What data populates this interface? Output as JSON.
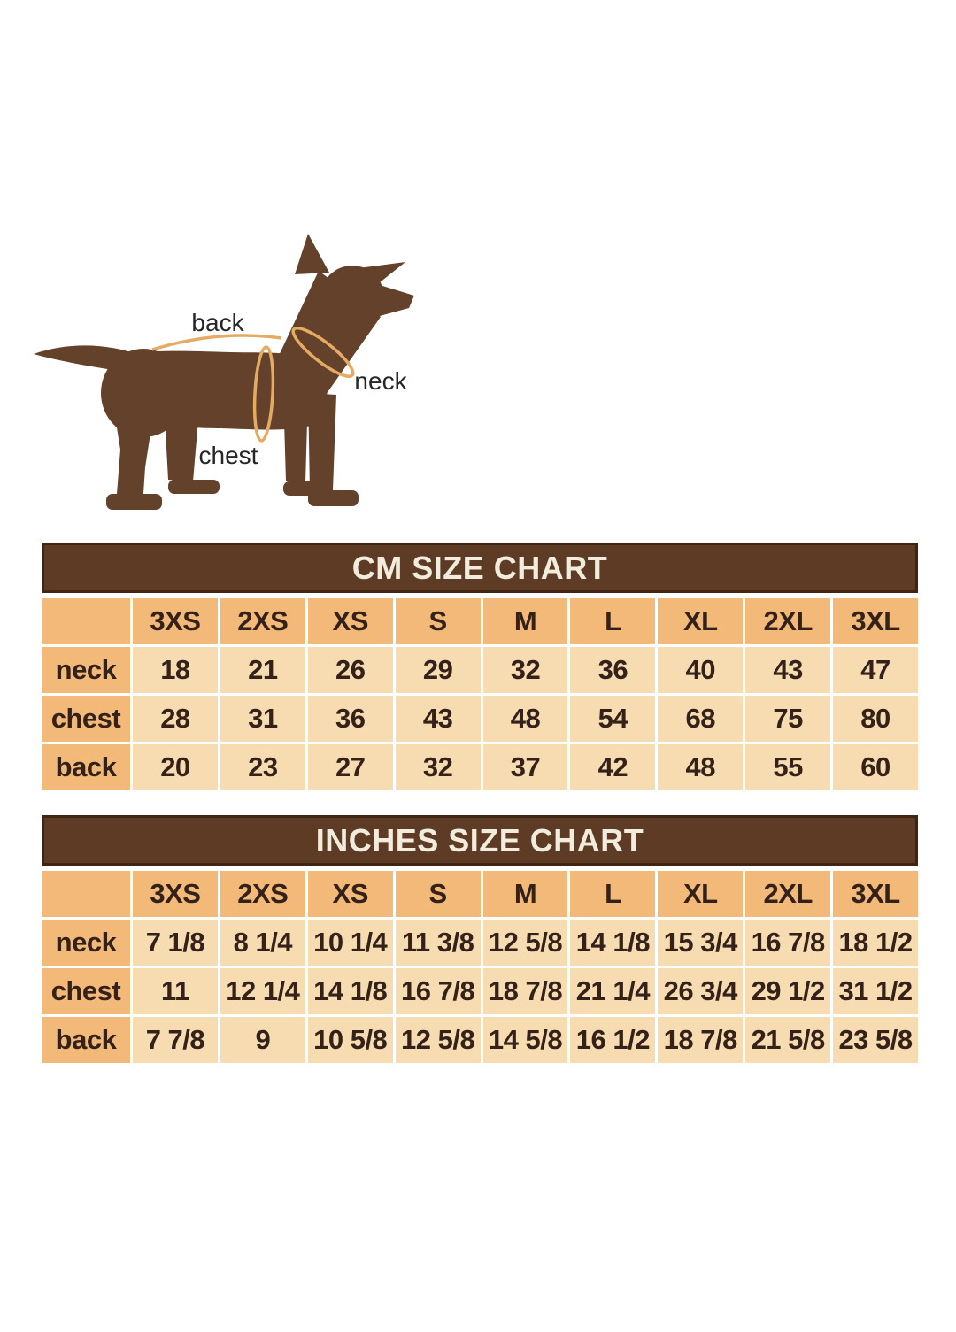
{
  "page": {
    "background": "#ffffff"
  },
  "colors": {
    "dog_silhouette": "#63412a",
    "measure_line": "#e5ab62",
    "diagram_label_text": "#262626",
    "title_bar_bg": "#5d3b25",
    "title_bar_border": "#3f2614",
    "title_text": "#f2ecdc",
    "header_cell_bg": "#f3b978",
    "data_cell_bg": "#f8dcb1",
    "cell_text": "#33211a"
  },
  "diagram": {
    "labels": {
      "back": "back",
      "neck": "neck",
      "chest": "chest"
    }
  },
  "chart_data": [
    {
      "type": "table",
      "title": "CM SIZE CHART",
      "columns": [
        "3XS",
        "2XS",
        "XS",
        "S",
        "M",
        "L",
        "XL",
        "2XL",
        "3XL"
      ],
      "rows": [
        {
          "label": "neck",
          "values": [
            "18",
            "21",
            "26",
            "29",
            "32",
            "36",
            "40",
            "43",
            "47"
          ]
        },
        {
          "label": "chest",
          "values": [
            "28",
            "31",
            "36",
            "43",
            "48",
            "54",
            "68",
            "75",
            "80"
          ]
        },
        {
          "label": "back",
          "values": [
            "20",
            "23",
            "27",
            "32",
            "37",
            "42",
            "48",
            "55",
            "60"
          ]
        }
      ]
    },
    {
      "type": "table",
      "title": "INCHES SIZE CHART",
      "columns": [
        "3XS",
        "2XS",
        "XS",
        "S",
        "M",
        "L",
        "XL",
        "2XL",
        "3XL"
      ],
      "rows": [
        {
          "label": "neck",
          "values": [
            "7 1/8",
            "8 1/4",
            "10 1/4",
            "11 3/8",
            "12 5/8",
            "14 1/8",
            "15 3/4",
            "16 7/8",
            "18 1/2"
          ]
        },
        {
          "label": "chest",
          "values": [
            "11",
            "12 1/4",
            "14 1/8",
            "16 7/8",
            "18 7/8",
            "21 1/4",
            "26 3/4",
            "29 1/2",
            "31 1/2"
          ]
        },
        {
          "label": "back",
          "values": [
            "7 7/8",
            "9",
            "10 5/8",
            "12 5/8",
            "14 5/8",
            "16 1/2",
            "18 7/8",
            "21 5/8",
            "23 5/8"
          ]
        }
      ]
    }
  ]
}
